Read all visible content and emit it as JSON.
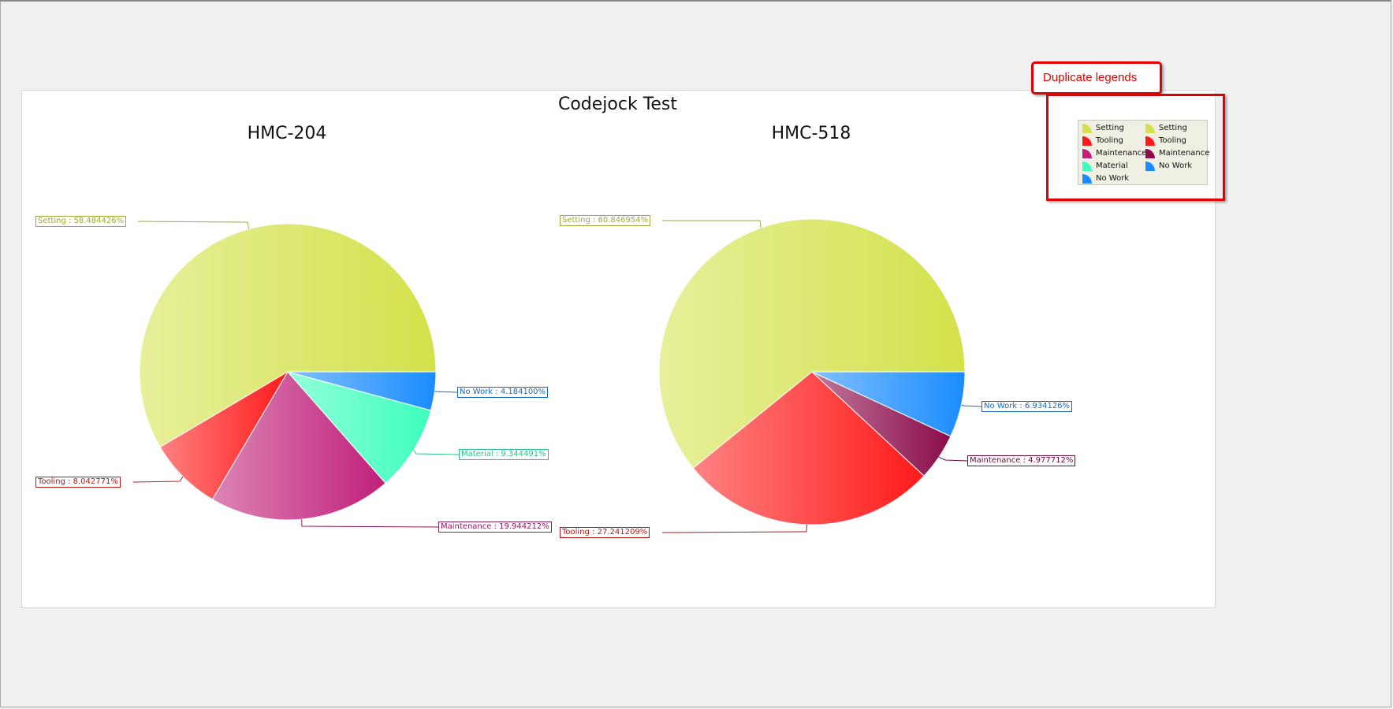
{
  "chart_data": {
    "type": "pie",
    "title": "Codejock Test",
    "charts": [
      {
        "title": "HMC-204",
        "slices": [
          {
            "name": "Setting",
            "value": 58.484426,
            "label": "Setting : 58.484426%",
            "color": "#d3e14a"
          },
          {
            "name": "Tooling",
            "value": 8.042771,
            "label": "Tooling : 8.042771%",
            "color": "#ff1a1a"
          },
          {
            "name": "Maintenance",
            "value": 19.944212,
            "label": "Maintenance : 19.944212%",
            "color": "#c0207a"
          },
          {
            "name": "Material",
            "value": 9.344491,
            "label": "Material : 9.344491%",
            "color": "#3dffbc"
          },
          {
            "name": "No Work",
            "value": 4.1841,
            "label": "No Work : 4.184100%",
            "color": "#1a8cff"
          }
        ]
      },
      {
        "title": "HMC-518",
        "slices": [
          {
            "name": "Setting",
            "value": 60.846954,
            "label": "Setting : 60.846954%",
            "color": "#d3e14a"
          },
          {
            "name": "Tooling",
            "value": 27.241209,
            "label": "Tooling : 27.241209%",
            "color": "#ff1a1a"
          },
          {
            "name": "Maintenance",
            "value": 4.977712,
            "label": "Maintenance : 4.977712%",
            "color": "#8a0c4a"
          },
          {
            "name": "No Work",
            "value": 6.934126,
            "label": "No Work : 6.934126%",
            "color": "#1a8cff"
          }
        ]
      }
    ],
    "legend_placement": "top-right"
  },
  "legend": {
    "columns": [
      [
        "Setting",
        "Tooling",
        "Maintenance",
        "Material",
        "No Work"
      ],
      [
        "Setting",
        "Tooling",
        "Maintenance",
        "No Work"
      ]
    ]
  },
  "annotation": {
    "callout_text": "Duplicate legends",
    "color": "#e00000"
  }
}
